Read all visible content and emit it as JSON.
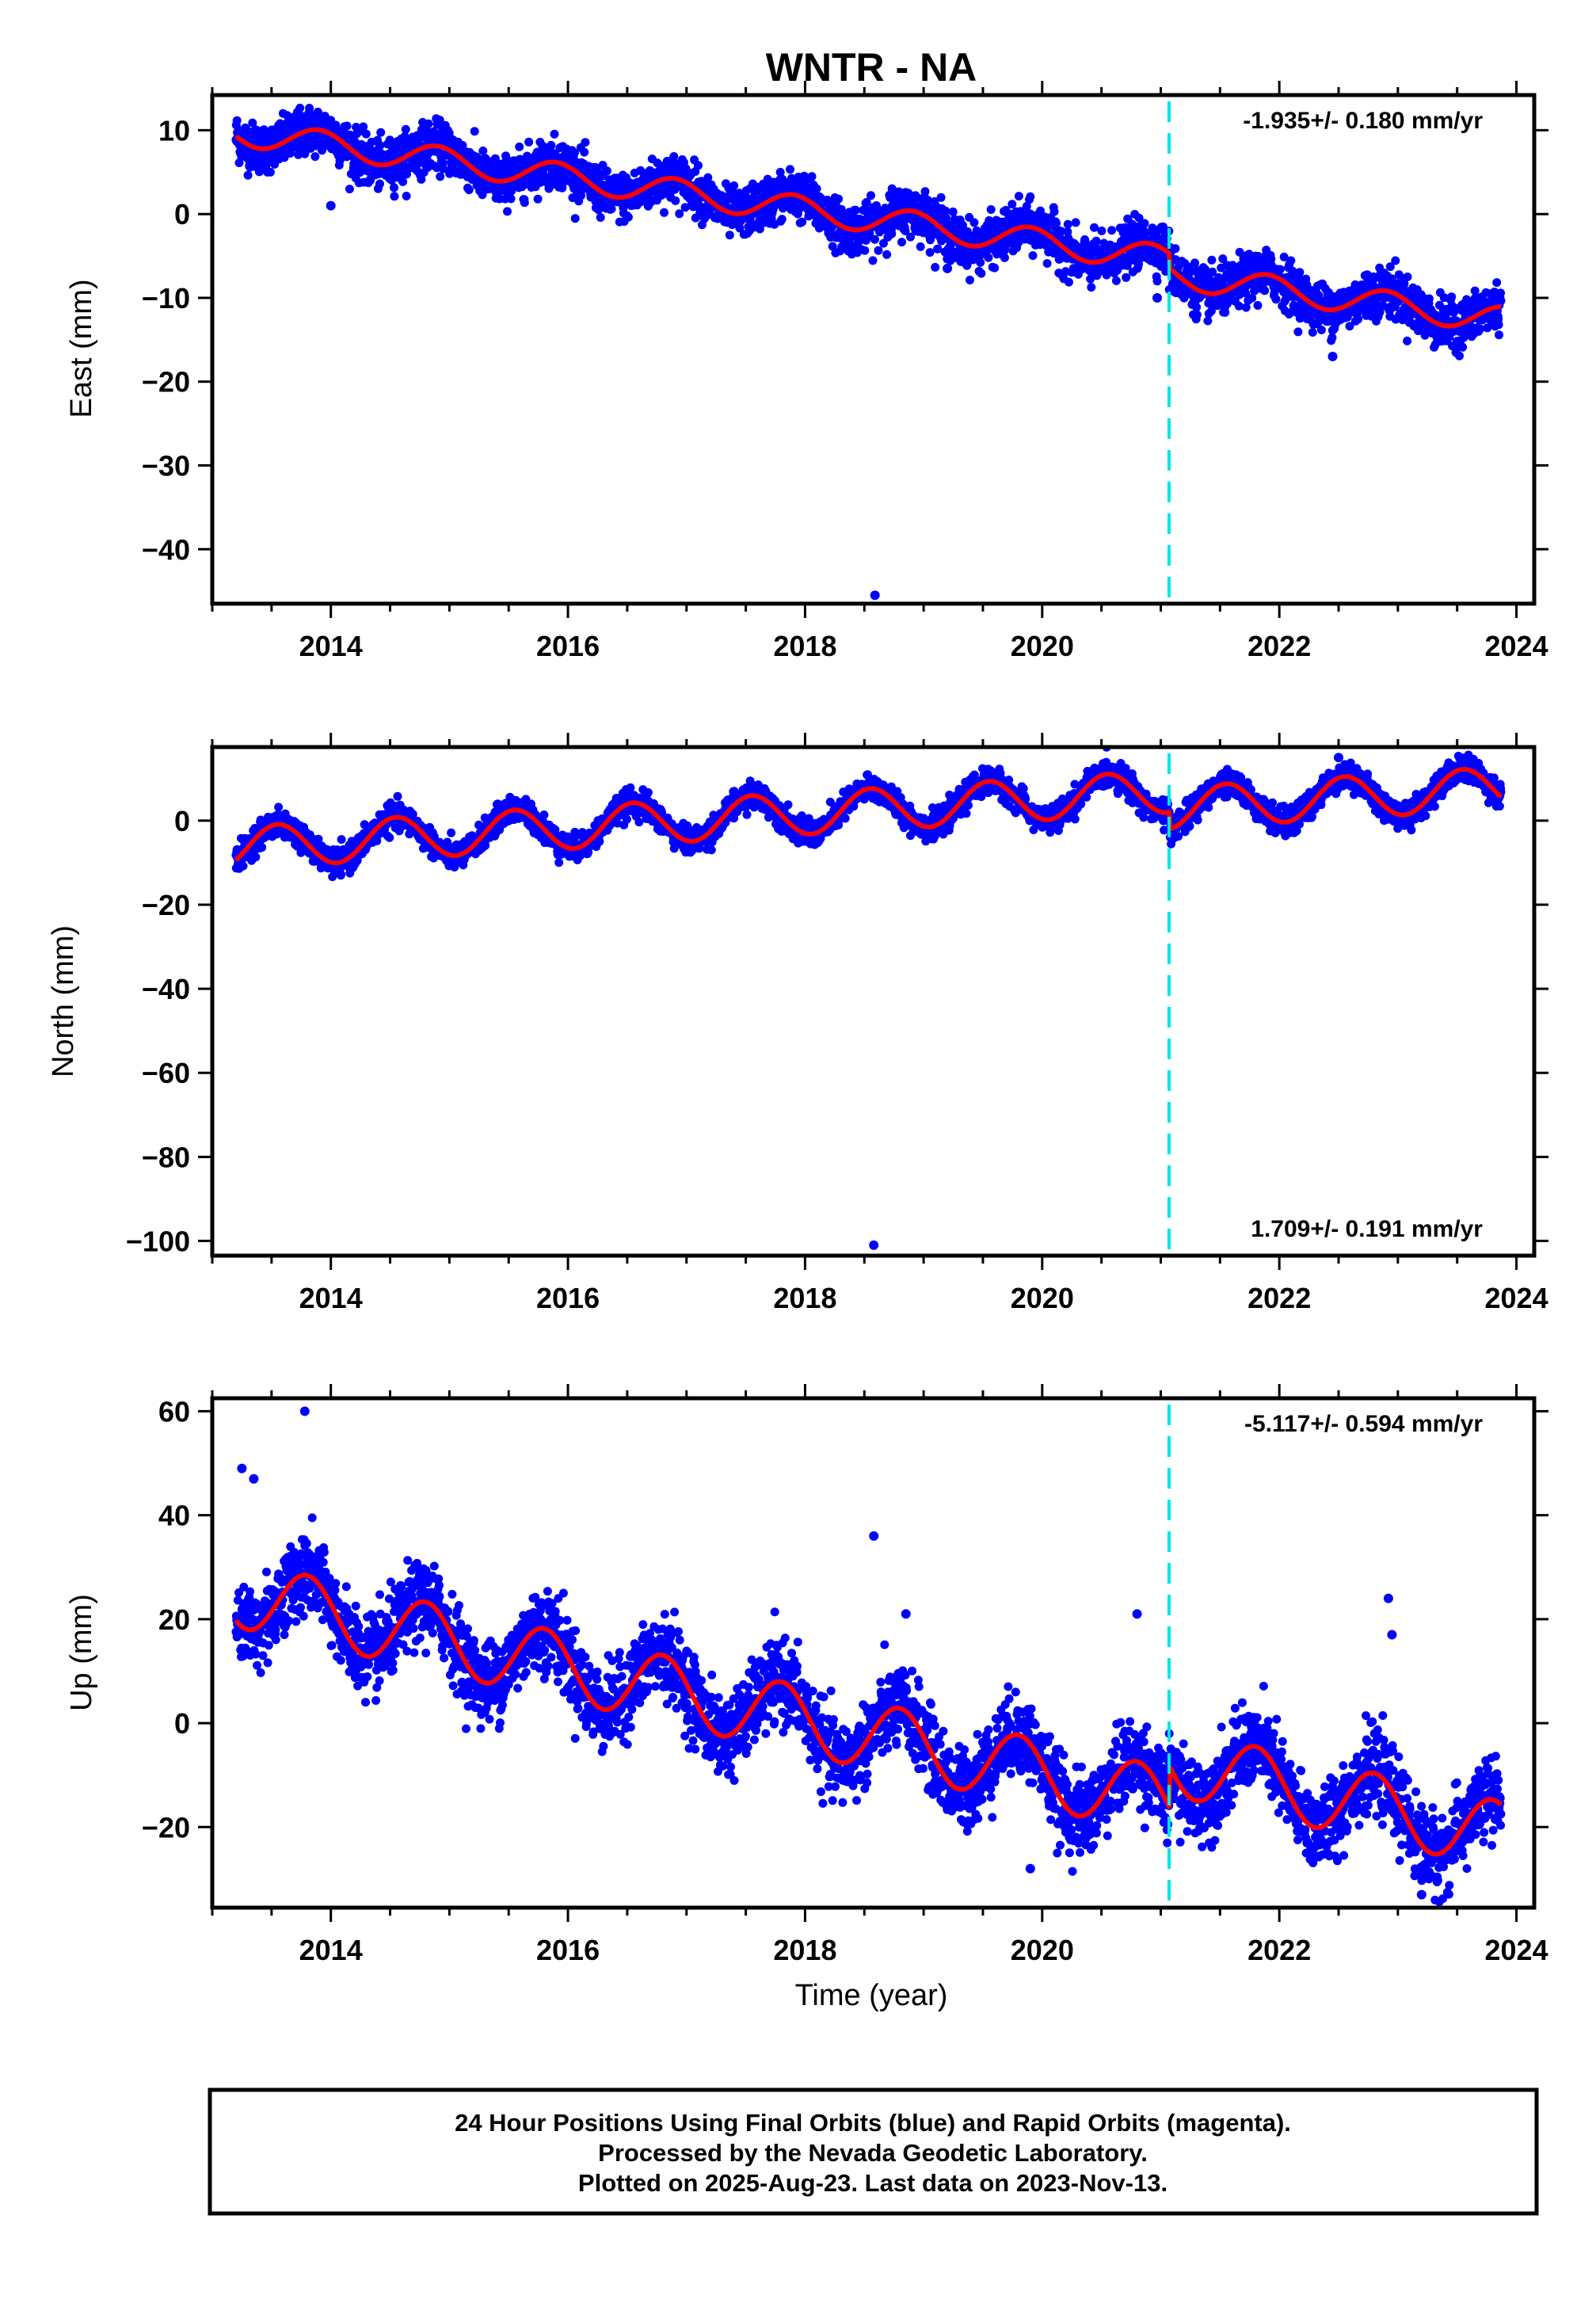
{
  "title": "WNTR - NA",
  "colors": {
    "points": "#0000ff",
    "model": "#ff0000",
    "offset_line": "#00e5e5",
    "frame": "#000000"
  },
  "offset_epoch": 2021.07,
  "last_data_epoch": 2023.87,
  "footer": {
    "lines": [
      "24 Hour Positions Using Final Orbits (blue) and Rapid Orbits (magenta).",
      "Processed by the Nevada Geodetic Laboratory.",
      "Plotted on 2025-Aug-23. Last data on 2023-Nov-13."
    ]
  },
  "chart_data": [
    {
      "type": "scatter",
      "component": "east",
      "ylabel": "East (mm)",
      "xlabel": "",
      "xlim": [
        2013.0,
        2024.15
      ],
      "ylim": [
        -46.5,
        14.2
      ],
      "xticks": [
        2014,
        2016,
        2018,
        2020,
        2022,
        2024
      ],
      "yticks": [
        10,
        0,
        -10,
        -20,
        -30,
        -40
      ],
      "ytick_labels": [
        "10",
        "0",
        "−10",
        "−20",
        "−30",
        "−40"
      ],
      "rate_text": "-1.935+/- 0.180 mm/yr",
      "rate_position": "top-right",
      "model": {
        "t0": 2013.2,
        "t1": 2023.87,
        "y0": 9.8,
        "rate": -1.935,
        "annual_amp": 1.6,
        "annual_phase": 0.65,
        "offset_epoch": 2021.07,
        "offset": -1.8
      },
      "scatter_sigma": 1.4,
      "outliers": [
        [
          2018.59,
          -45.5
        ],
        [
          2014.0,
          1.0
        ],
        [
          2020.97,
          -10.0
        ],
        [
          2022.45,
          -17.0
        ],
        [
          2019.2,
          -6.5
        ]
      ]
    },
    {
      "type": "scatter",
      "component": "north",
      "ylabel": "North (mm)",
      "xlabel": "",
      "xlim": [
        2013.0,
        2024.15
      ],
      "ylim": [
        -103.5,
        17.5
      ],
      "xticks": [
        2014,
        2016,
        2018,
        2020,
        2022,
        2024
      ],
      "yticks": [
        0,
        -20,
        -40,
        -60,
        -80,
        -100
      ],
      "ytick_labels": [
        "0",
        "−20",
        "−40",
        "−60",
        "−80",
        "−100"
      ],
      "rate_text": "1.709+/- 0.191 mm/yr",
      "rate_position": "bottom-right",
      "model": {
        "t0": 2013.2,
        "t1": 2023.87,
        "y0": -6.5,
        "rate": 1.709,
        "annual_amp": 5.0,
        "annual_phase": 0.3,
        "offset_epoch": 2021.07,
        "offset": -4.0
      },
      "scatter_sigma": 1.5,
      "outliers": [
        [
          2018.58,
          -101.0
        ],
        [
          2022.5,
          15.0
        ]
      ]
    },
    {
      "type": "scatter",
      "component": "up",
      "ylabel": "Up (mm)",
      "xlabel": "Time (year)",
      "xlim": [
        2013.0,
        2024.15
      ],
      "ylim": [
        -35.5,
        62.5
      ],
      "xticks": [
        2014,
        2016,
        2018,
        2020,
        2022,
        2024
      ],
      "yticks": [
        60,
        40,
        20,
        0,
        -20
      ],
      "ytick_labels": [
        "60",
        "40",
        "20",
        "0",
        "−20"
      ],
      "rate_text": "-5.117+/- 0.594 mm/yr",
      "rate_position": "top-right",
      "model": {
        "t0": 2013.2,
        "t1": 2023.87,
        "y0": 25.0,
        "rate": -5.117,
        "annual_amp": 6.5,
        "annual_phase": 0.55,
        "offset_epoch": 2021.07,
        "offset": 8.0
      },
      "scatter_sigma": 3.8,
      "outliers": [
        [
          2013.78,
          60.0
        ],
        [
          2018.58,
          36.0
        ],
        [
          2018.85,
          21.0
        ],
        [
          2020.8,
          21.0
        ],
        [
          2022.92,
          24.0
        ],
        [
          2022.95,
          17.0
        ],
        [
          2023.2,
          -33.0
        ],
        [
          2019.9,
          -28.0
        ],
        [
          2013.25,
          49.0
        ],
        [
          2013.35,
          47.0
        ]
      ]
    }
  ]
}
